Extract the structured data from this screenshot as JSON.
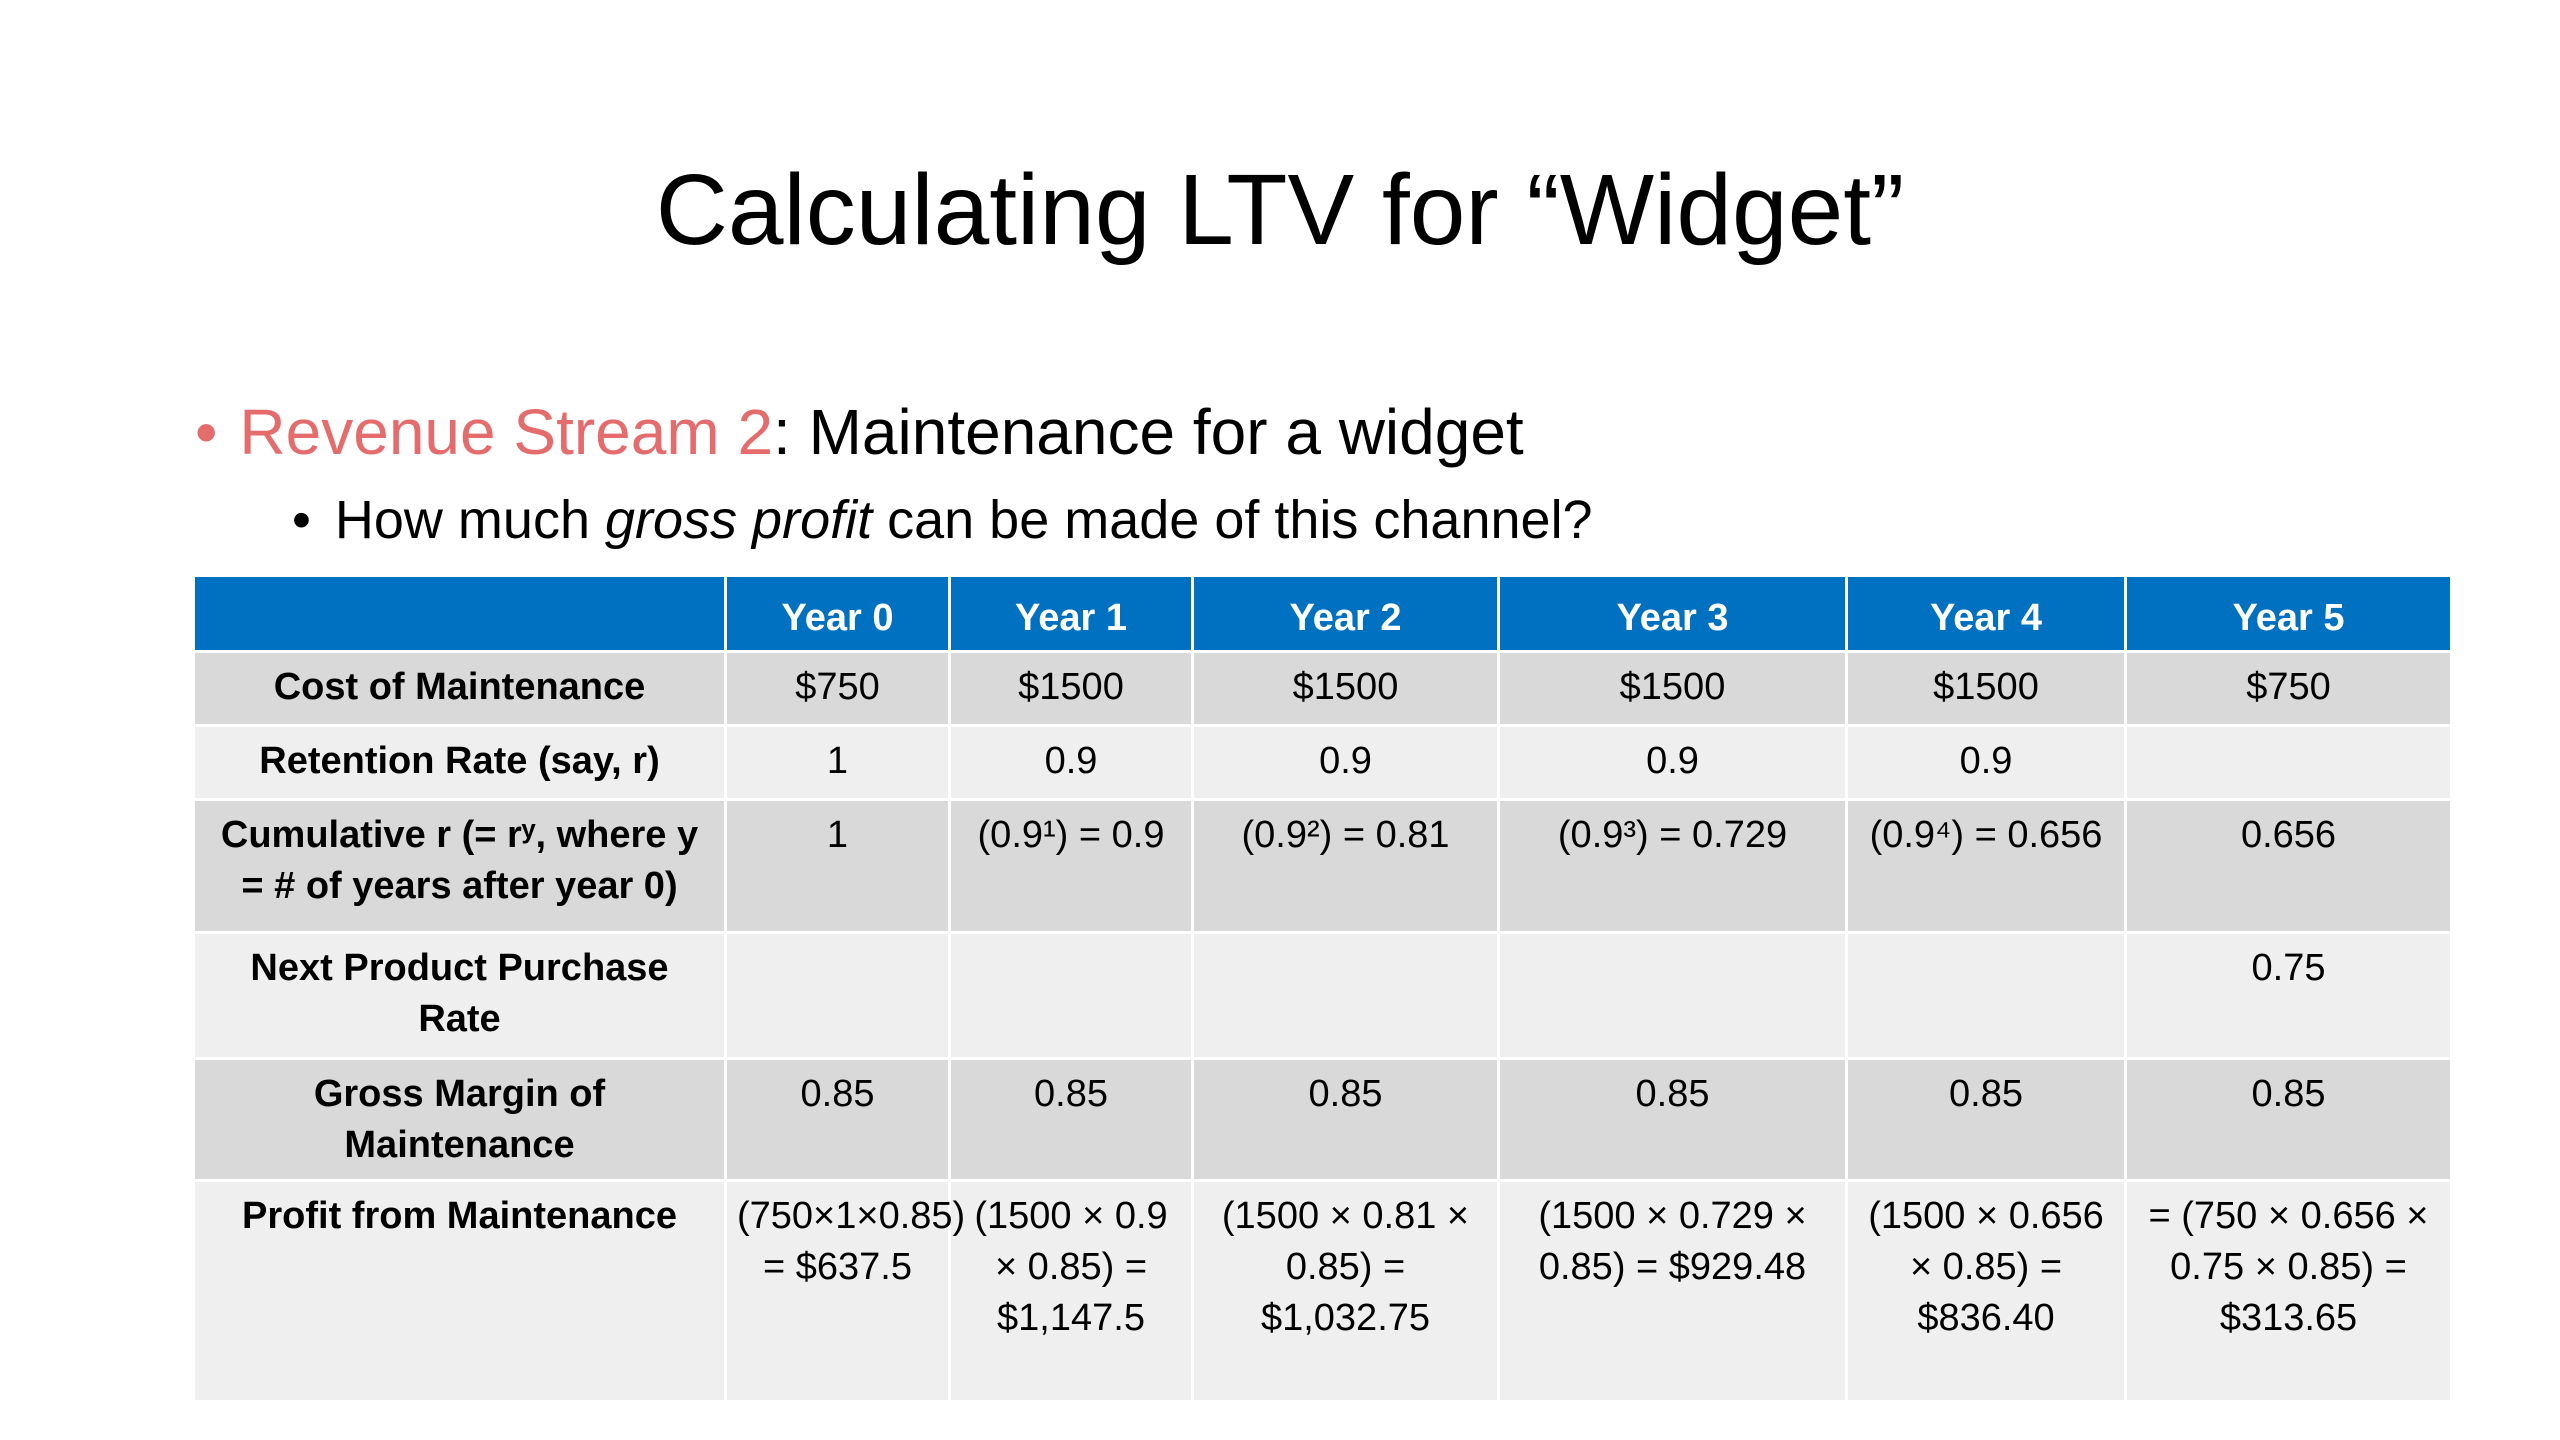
{
  "title": "Calculating LTV for “Widget”",
  "bullet1": {
    "marker": "•",
    "highlight": "Revenue Stream 2",
    "rest": ": Maintenance for a widget"
  },
  "bullet2": {
    "marker": "•",
    "before": "How much ",
    "italic": "gross profit",
    "after": " can be made of this channel?"
  },
  "colors": {
    "accent": "#e46c6c",
    "header_bg": "#0070c0",
    "row_dark": "#d9d9d9",
    "row_light": "#efefef"
  },
  "table": {
    "headers": [
      "",
      "Year 0",
      "Year 1",
      "Year 2",
      "Year 3",
      "Year 4",
      "Year 5"
    ],
    "rows": [
      {
        "label": "Cost of Maintenance",
        "cells": [
          "$750",
          "$1500",
          "$1500",
          "$1500",
          "$1500",
          "$750"
        ]
      },
      {
        "label": "Retention Rate (say, r)",
        "cells": [
          "1",
          "0.9",
          "0.9",
          "0.9",
          "0.9",
          ""
        ]
      },
      {
        "label": "Cumulative r (= rʸ, where y = # of years after year 0)",
        "cells": [
          "1",
          "(0.9¹) = 0.9",
          "(0.9²) = 0.81",
          "(0.9³) = 0.729",
          "(0.9⁴) = 0.656",
          "0.656"
        ]
      },
      {
        "label": "Next Product Purchase Rate",
        "cells": [
          "",
          "",
          "",
          "",
          "",
          "0.75"
        ]
      },
      {
        "label": "Gross Margin of Maintenance",
        "cells": [
          "0.85",
          "0.85",
          "0.85",
          "0.85",
          "0.85",
          "0.85"
        ]
      },
      {
        "label": "Profit from Maintenance",
        "cells": [
          "(750×1×0.85) = $637.5",
          "(1500 × 0.9 × 0.85) = $1,147.5",
          "(1500 × 0.81 × 0.85) = $1,032.75",
          "(1500 × 0.729 × 0.85) = $929.48",
          "(1500 × 0.656 × 0.85) = $836.40",
          "= (750 × 0.656 × 0.75 × 0.85) = $313.65"
        ]
      }
    ]
  }
}
